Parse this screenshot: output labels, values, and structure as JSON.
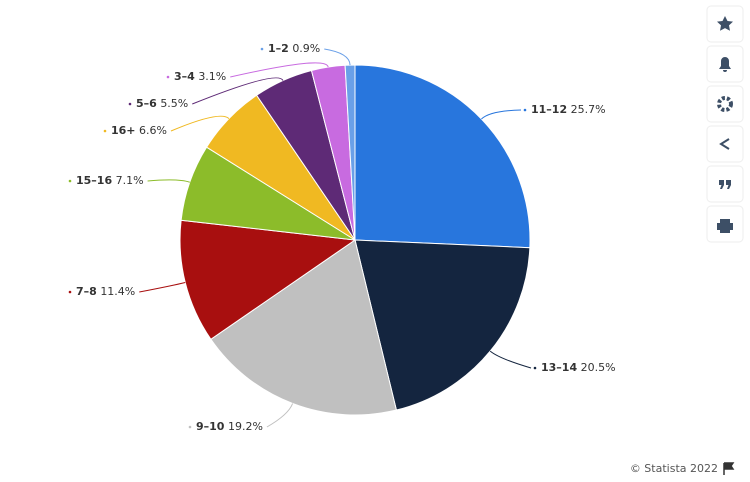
{
  "chart_data": {
    "type": "pie",
    "categories": [
      "11–12",
      "13–14",
      "9–10",
      "7–8",
      "15–16",
      "16+",
      "5–6",
      "3–4",
      "1–2"
    ],
    "values": [
      25.7,
      20.5,
      19.2,
      11.4,
      7.1,
      6.6,
      5.5,
      3.1,
      0.9
    ],
    "value_labels": [
      "25.7%",
      "20.5%",
      "19.2%",
      "11.4%",
      "7.1%",
      "6.6%",
      "5.5%",
      "3.1%",
      "0.9%"
    ],
    "colors": [
      "#2876dd",
      "#14253f",
      "#c0c0c0",
      "#a80f0f",
      "#8cbc2a",
      "#f0b922",
      "#5e2a76",
      "#c86be0",
      "#6aa0e8"
    ],
    "credit": "© Statista 2022"
  }
}
